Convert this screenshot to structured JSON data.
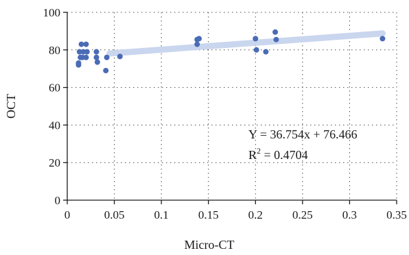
{
  "chart_data": {
    "type": "scatter",
    "xlabel": "Micro-CT",
    "ylabel": "OCT",
    "xlim": [
      0,
      0.35
    ],
    "ylim": [
      0,
      100
    ],
    "xticks": [
      0,
      0.05,
      0.1,
      0.15,
      0.2,
      0.25,
      0.3,
      0.35
    ],
    "xtick_labels": [
      "0",
      "0.05",
      "0.1",
      "0.15",
      "0.2",
      "0.25",
      "0.3",
      "0.35"
    ],
    "yticks": [
      0,
      20,
      40,
      60,
      80,
      100
    ],
    "ytick_labels": [
      "0",
      "20",
      "40",
      "60",
      "80",
      "100"
    ],
    "grid": true,
    "point_color": "#4a6bb5",
    "trend_color": "#c9d6ee",
    "points": [
      {
        "x": 0.012,
        "y": 72.0
      },
      {
        "x": 0.012,
        "y": 73.0
      },
      {
        "x": 0.013,
        "y": 79.0
      },
      {
        "x": 0.014,
        "y": 76.0
      },
      {
        "x": 0.015,
        "y": 83.0
      },
      {
        "x": 0.016,
        "y": 76.0
      },
      {
        "x": 0.017,
        "y": 79.0
      },
      {
        "x": 0.02,
        "y": 83.0
      },
      {
        "x": 0.02,
        "y": 76.0
      },
      {
        "x": 0.021,
        "y": 79.0
      },
      {
        "x": 0.031,
        "y": 79.0
      },
      {
        "x": 0.031,
        "y": 76.0
      },
      {
        "x": 0.032,
        "y": 73.5
      },
      {
        "x": 0.041,
        "y": 69.0
      },
      {
        "x": 0.042,
        "y": 76.0
      },
      {
        "x": 0.056,
        "y": 76.5
      },
      {
        "x": 0.138,
        "y": 83.0
      },
      {
        "x": 0.138,
        "y": 85.5
      },
      {
        "x": 0.14,
        "y": 86.0
      },
      {
        "x": 0.2,
        "y": 86.0
      },
      {
        "x": 0.201,
        "y": 80.0
      },
      {
        "x": 0.211,
        "y": 79.0
      },
      {
        "x": 0.221,
        "y": 89.5
      },
      {
        "x": 0.222,
        "y": 85.5
      },
      {
        "x": 0.335,
        "y": 86.0
      }
    ],
    "trendline": {
      "slope": 36.754,
      "intercept": 76.466,
      "x_range": [
        0.045,
        0.335
      ]
    },
    "annotations": {
      "equation": "Y = 36.754x + 76.466",
      "r2_prefix": "R",
      "r2_sup": "2",
      "r2_value": " = 0.4704"
    }
  }
}
